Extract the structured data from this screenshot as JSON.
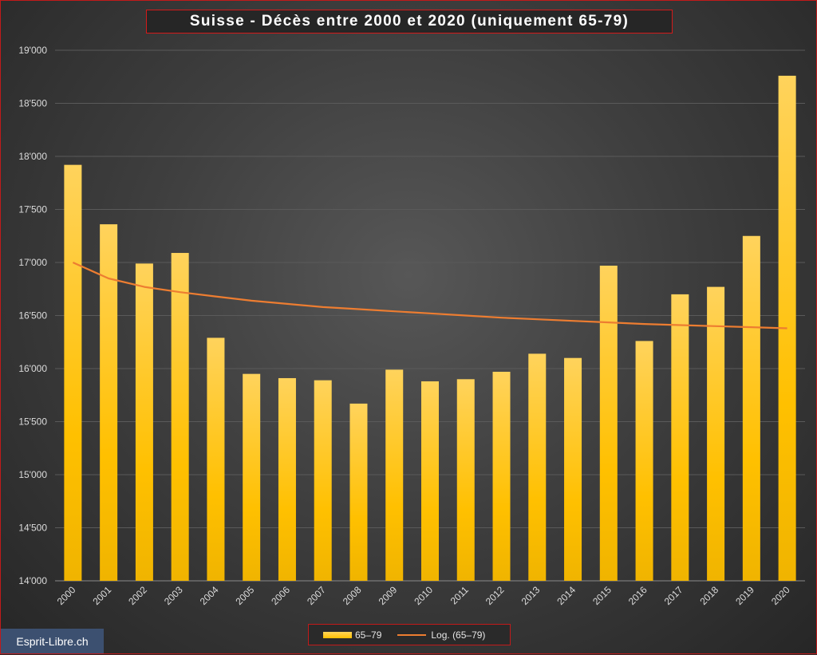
{
  "chart_data": {
    "type": "bar",
    "title": "Suisse - Décès entre 2000 et 2020 (uniquement  65-79)",
    "categories": [
      "2000",
      "2001",
      "2002",
      "2003",
      "2004",
      "2005",
      "2006",
      "2007",
      "2008",
      "2009",
      "2010",
      "2011",
      "2012",
      "2013",
      "2014",
      "2015",
      "2016",
      "2017",
      "2018",
      "2019",
      "2020"
    ],
    "series": [
      {
        "name": "65–79",
        "type": "bar",
        "color": "#ffc000",
        "values": [
          17920,
          17360,
          16990,
          17090,
          16290,
          15950,
          15910,
          15890,
          15670,
          15990,
          15880,
          15900,
          15970,
          16140,
          16100,
          16970,
          16260,
          16700,
          16770,
          17250,
          18760
        ]
      },
      {
        "name": "Log. (65–79)",
        "type": "line",
        "color": "#ed7d31",
        "values": [
          17000,
          16850,
          16770,
          16720,
          16680,
          16640,
          16610,
          16580,
          16560,
          16540,
          16520,
          16500,
          16480,
          16465,
          16450,
          16435,
          16420,
          16410,
          16400,
          16390,
          16380
        ]
      }
    ],
    "ylim": [
      14000,
      19000
    ],
    "yticks": [
      "14'000",
      "14'500",
      "15'000",
      "15'500",
      "16'000",
      "16'500",
      "17'000",
      "17'500",
      "18'000",
      "18'500",
      "19'000"
    ],
    "xlabel": "",
    "ylabel": "",
    "grid": true,
    "legend_position": "bottom"
  },
  "watermark": "Esprit-Libre.ch"
}
